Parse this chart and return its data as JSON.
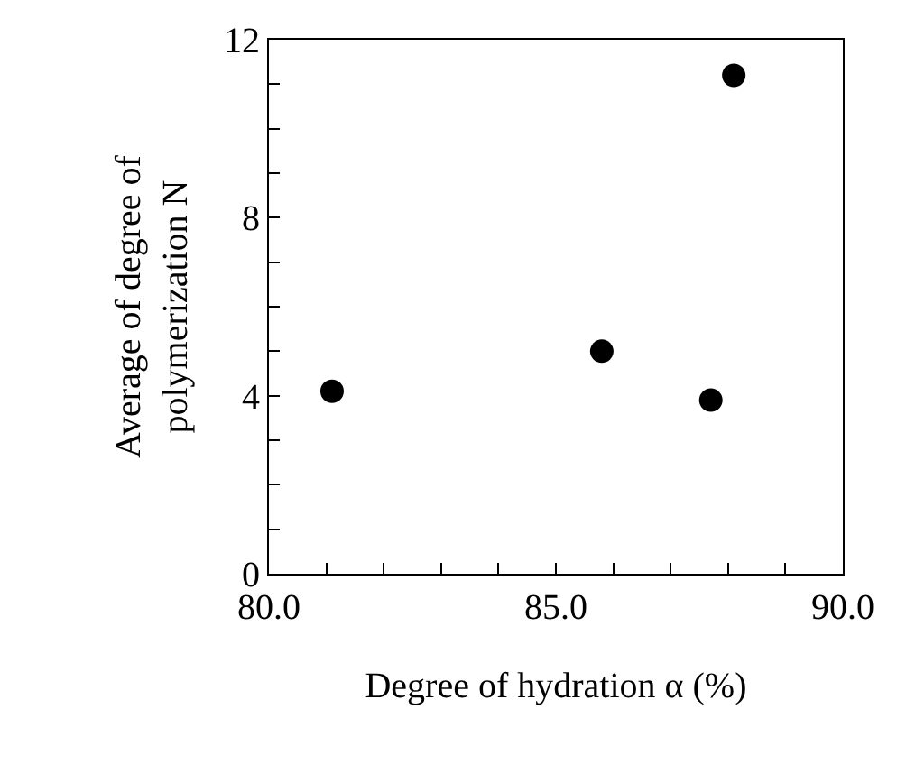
{
  "chart_data": {
    "type": "scatter",
    "xlabel": "Degree of hydration α (%)",
    "ylabel": "Average of degree of\npolymerization N",
    "x": [
      81.1,
      85.8,
      87.7,
      88.1
    ],
    "values": [
      4.1,
      5.0,
      3.9,
      11.2
    ],
    "color": "#000000",
    "marker": "circle",
    "xlim": [
      80,
      90
    ],
    "xticks": [
      {
        "value": 80,
        "label": "80.0"
      },
      {
        "value": 81,
        "label": null
      },
      {
        "value": 82,
        "label": null
      },
      {
        "value": 83,
        "label": null
      },
      {
        "value": 84,
        "label": null
      },
      {
        "value": 85,
        "label": "85.0"
      },
      {
        "value": 86,
        "label": null
      },
      {
        "value": 87,
        "label": null
      },
      {
        "value": 88,
        "label": null
      },
      {
        "value": 89,
        "label": null
      },
      {
        "value": 90,
        "label": "90.0"
      }
    ],
    "ylim": [
      0,
      12
    ],
    "yticks": [
      0,
      {
        "value": 1,
        "label": null
      },
      {
        "value": 2,
        "label": null
      },
      {
        "value": 3,
        "label": null
      },
      4,
      {
        "value": 5,
        "label": null
      },
      {
        "value": 6,
        "label": null
      },
      {
        "value": 7,
        "label": null
      },
      8,
      {
        "value": 9,
        "label": null
      },
      {
        "value": 10,
        "label": null
      },
      {
        "value": 11,
        "label": null
      },
      12
    ],
    "line_style": "none"
  }
}
